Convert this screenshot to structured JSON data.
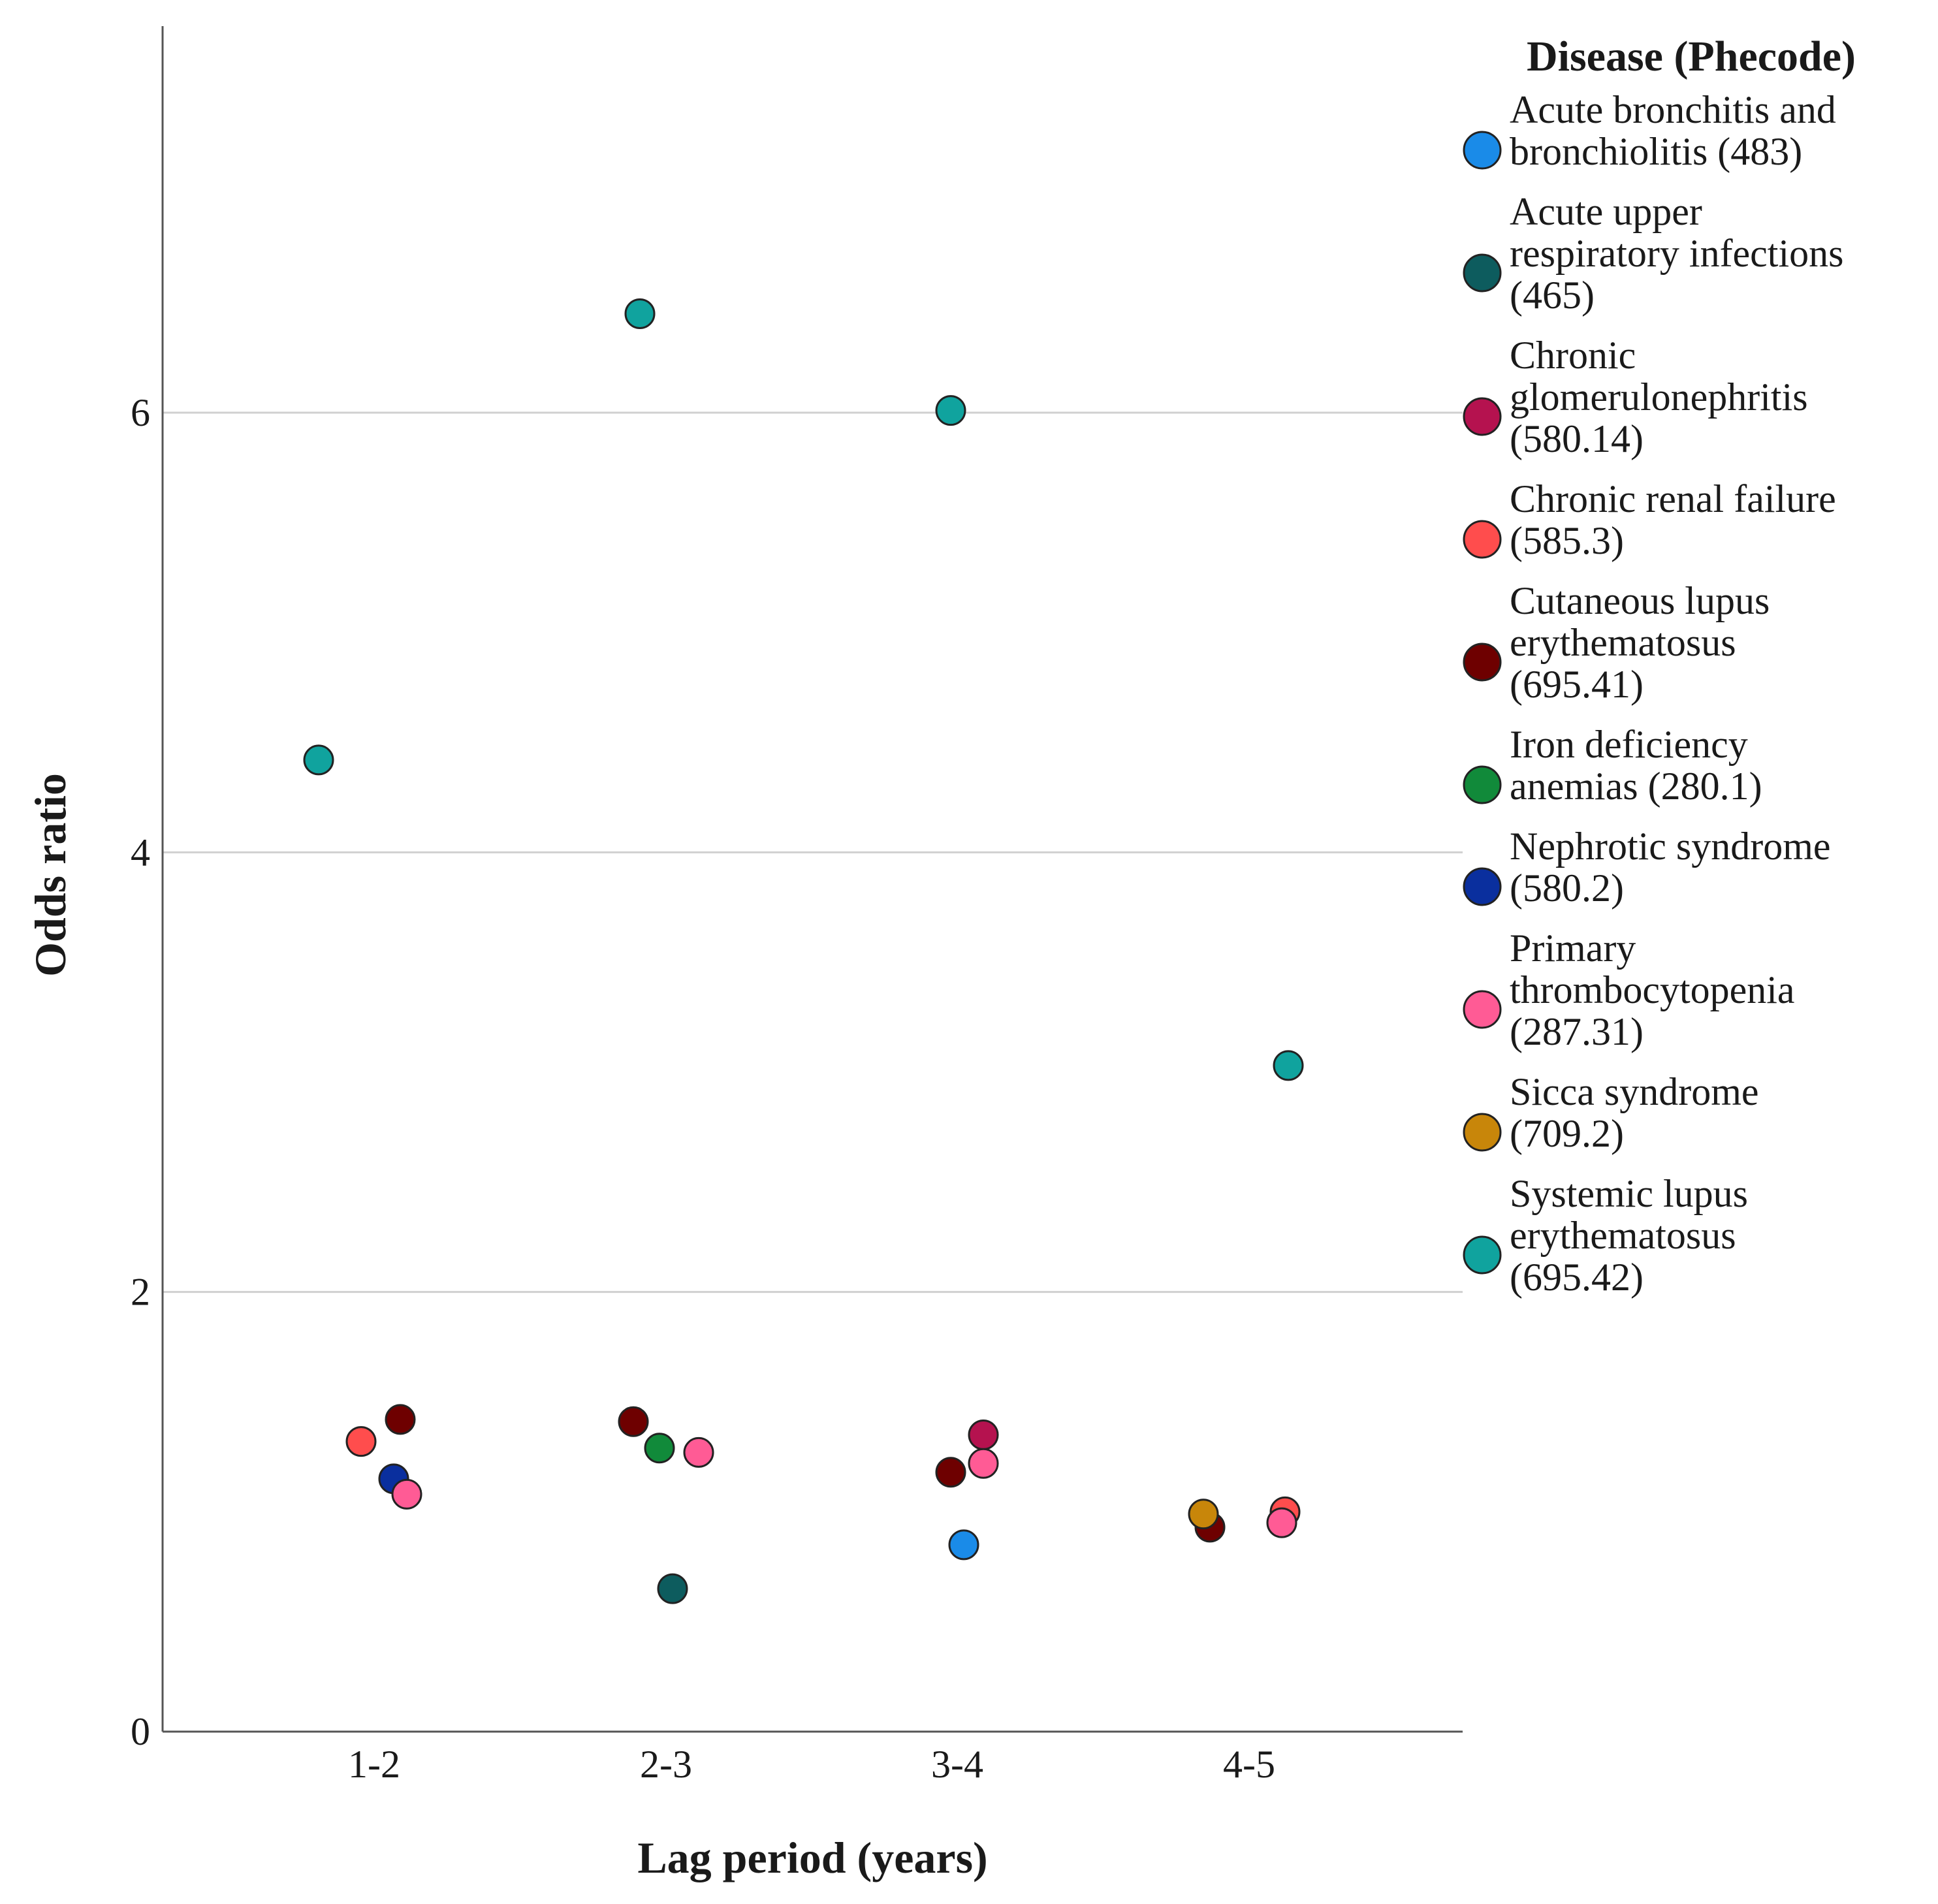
{
  "chart_data": {
    "type": "scatter",
    "title": "",
    "xlabel": "Lag period (years)",
    "ylabel": "Odds ratio",
    "categories": [
      "1-2",
      "2-3",
      "3-4",
      "4-5"
    ],
    "ylim": [
      0,
      7.8
    ],
    "yticks": [
      0,
      2,
      4,
      6
    ],
    "grid": "horizontal",
    "legend_title": "Disease (Phecode)",
    "legend_position": "right",
    "series": [
      {
        "name": "Acute bronchitis and bronchiolitis (483)",
        "lines": [
          "Acute bronchitis and",
          "bronchiolitis (483)"
        ],
        "color": "#1a8be8",
        "points": [
          {
            "x": "3-4",
            "y": 0.85
          }
        ]
      },
      {
        "name": "Acute upper respiratory infections (465)",
        "lines": [
          "Acute upper",
          "respiratory infections",
          "(465)"
        ],
        "color": "#0d5c5e",
        "points": [
          {
            "x": "2-3",
            "y": 0.65
          }
        ]
      },
      {
        "name": "Chronic glomerulonephritis (580.14)",
        "lines": [
          "Chronic",
          "glomerulonephritis",
          "(580.14)"
        ],
        "color": "#b5124f",
        "points": [
          {
            "x": "3-4",
            "y": 1.35
          }
        ]
      },
      {
        "name": "Chronic renal failure (585.3)",
        "lines": [
          "Chronic renal failure",
          "(585.3)"
        ],
        "color": "#ff4d4d",
        "points": [
          {
            "x": "1-2",
            "y": 1.32
          },
          {
            "x": "4-5",
            "y": 1.0
          }
        ]
      },
      {
        "name": "Cutaneous lupus erythematosus (695.41)",
        "lines": [
          "Cutaneous lupus",
          "erythematosus",
          "(695.41)"
        ],
        "color": "#6e0000",
        "points": [
          {
            "x": "1-2",
            "y": 1.42
          },
          {
            "x": "2-3",
            "y": 1.41
          },
          {
            "x": "3-4",
            "y": 1.18
          },
          {
            "x": "4-5",
            "y": 0.93
          }
        ]
      },
      {
        "name": "Iron deficiency anemias (280.1)",
        "lines": [
          "Iron deficiency",
          "anemias (280.1)"
        ],
        "color": "#118a3a",
        "points": [
          {
            "x": "2-3",
            "y": 1.29
          }
        ]
      },
      {
        "name": "Nephrotic syndrome (580.2)",
        "lines": [
          "Nephrotic syndrome",
          "(580.2)"
        ],
        "color": "#0a2f9e",
        "points": [
          {
            "x": "1-2",
            "y": 1.15
          }
        ]
      },
      {
        "name": "Primary thrombocytopenia (287.31)",
        "lines": [
          "Primary",
          "thrombocytopenia",
          "(287.31)"
        ],
        "color": "#ff5b95",
        "points": [
          {
            "x": "1-2",
            "y": 1.08
          },
          {
            "x": "2-3",
            "y": 1.27
          },
          {
            "x": "3-4",
            "y": 1.22
          },
          {
            "x": "4-5",
            "y": 0.95
          }
        ]
      },
      {
        "name": "Sicca syndrome (709.2)",
        "lines": [
          "Sicca syndrome",
          "(709.2)"
        ],
        "color": "#c8860a",
        "points": [
          {
            "x": "4-5",
            "y": 0.99
          }
        ]
      },
      {
        "name": "Systemic lupus erythematosus (695.42)",
        "lines": [
          "Systemic lupus",
          "erythematosus",
          "(695.42)"
        ],
        "color": "#10a39e",
        "points": [
          {
            "x": "1-2",
            "y": 4.42
          },
          {
            "x": "2-3",
            "y": 6.45
          },
          {
            "x": "3-4",
            "y": 6.01
          },
          {
            "x": "4-5",
            "y": 3.03
          }
        ]
      }
    ]
  }
}
